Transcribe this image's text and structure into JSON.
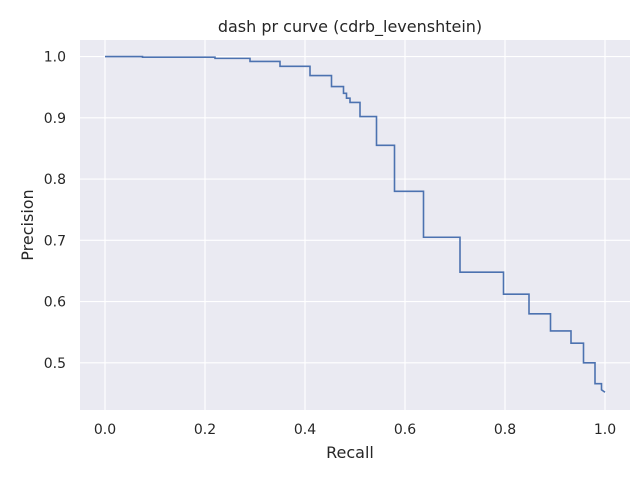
{
  "chart_data": {
    "type": "line",
    "title": "dash pr curve (cdrb_levenshtein)",
    "xlabel": "Recall",
    "ylabel": "Precision",
    "xlim": [
      -0.05,
      1.05
    ],
    "ylim": [
      0.423,
      1.027
    ],
    "x_ticks": [
      0.0,
      0.2,
      0.4,
      0.6,
      0.8,
      1.0
    ],
    "x_tick_labels": [
      "0.0",
      "0.2",
      "0.4",
      "0.6",
      "0.8",
      "1.0"
    ],
    "y_ticks": [
      0.5,
      0.6,
      0.7,
      0.8,
      0.9,
      1.0
    ],
    "y_tick_labels": [
      "0.5",
      "0.6",
      "0.7",
      "0.8",
      "0.9",
      "1.0"
    ],
    "grid": true,
    "background": "#eaeaf2",
    "line_color": "#4c72b0",
    "drawstyle": "steps",
    "series": [
      {
        "x": [
          0.0,
          0.075,
          0.075,
          0.22,
          0.22,
          0.29,
          0.29,
          0.35,
          0.35,
          0.41,
          0.41,
          0.453,
          0.453,
          0.477,
          0.477,
          0.483,
          0.483,
          0.49,
          0.49,
          0.51,
          0.51,
          0.543,
          0.543,
          0.579,
          0.579,
          0.637,
          0.637,
          0.71,
          0.71,
          0.797,
          0.797,
          0.848,
          0.848,
          0.891,
          0.891,
          0.932,
          0.932,
          0.957,
          0.957,
          0.98,
          0.98,
          0.993,
          0.993,
          1.0
        ],
        "y": [
          1.0,
          1.0,
          0.999,
          0.999,
          0.997,
          0.997,
          0.992,
          0.992,
          0.984,
          0.984,
          0.969,
          0.969,
          0.951,
          0.951,
          0.94,
          0.94,
          0.932,
          0.932,
          0.925,
          0.925,
          0.902,
          0.902,
          0.855,
          0.855,
          0.78,
          0.78,
          0.705,
          0.705,
          0.648,
          0.648,
          0.612,
          0.612,
          0.58,
          0.58,
          0.552,
          0.552,
          0.532,
          0.532,
          0.5,
          0.5,
          0.466,
          0.466,
          0.456,
          0.452
        ]
      }
    ]
  }
}
